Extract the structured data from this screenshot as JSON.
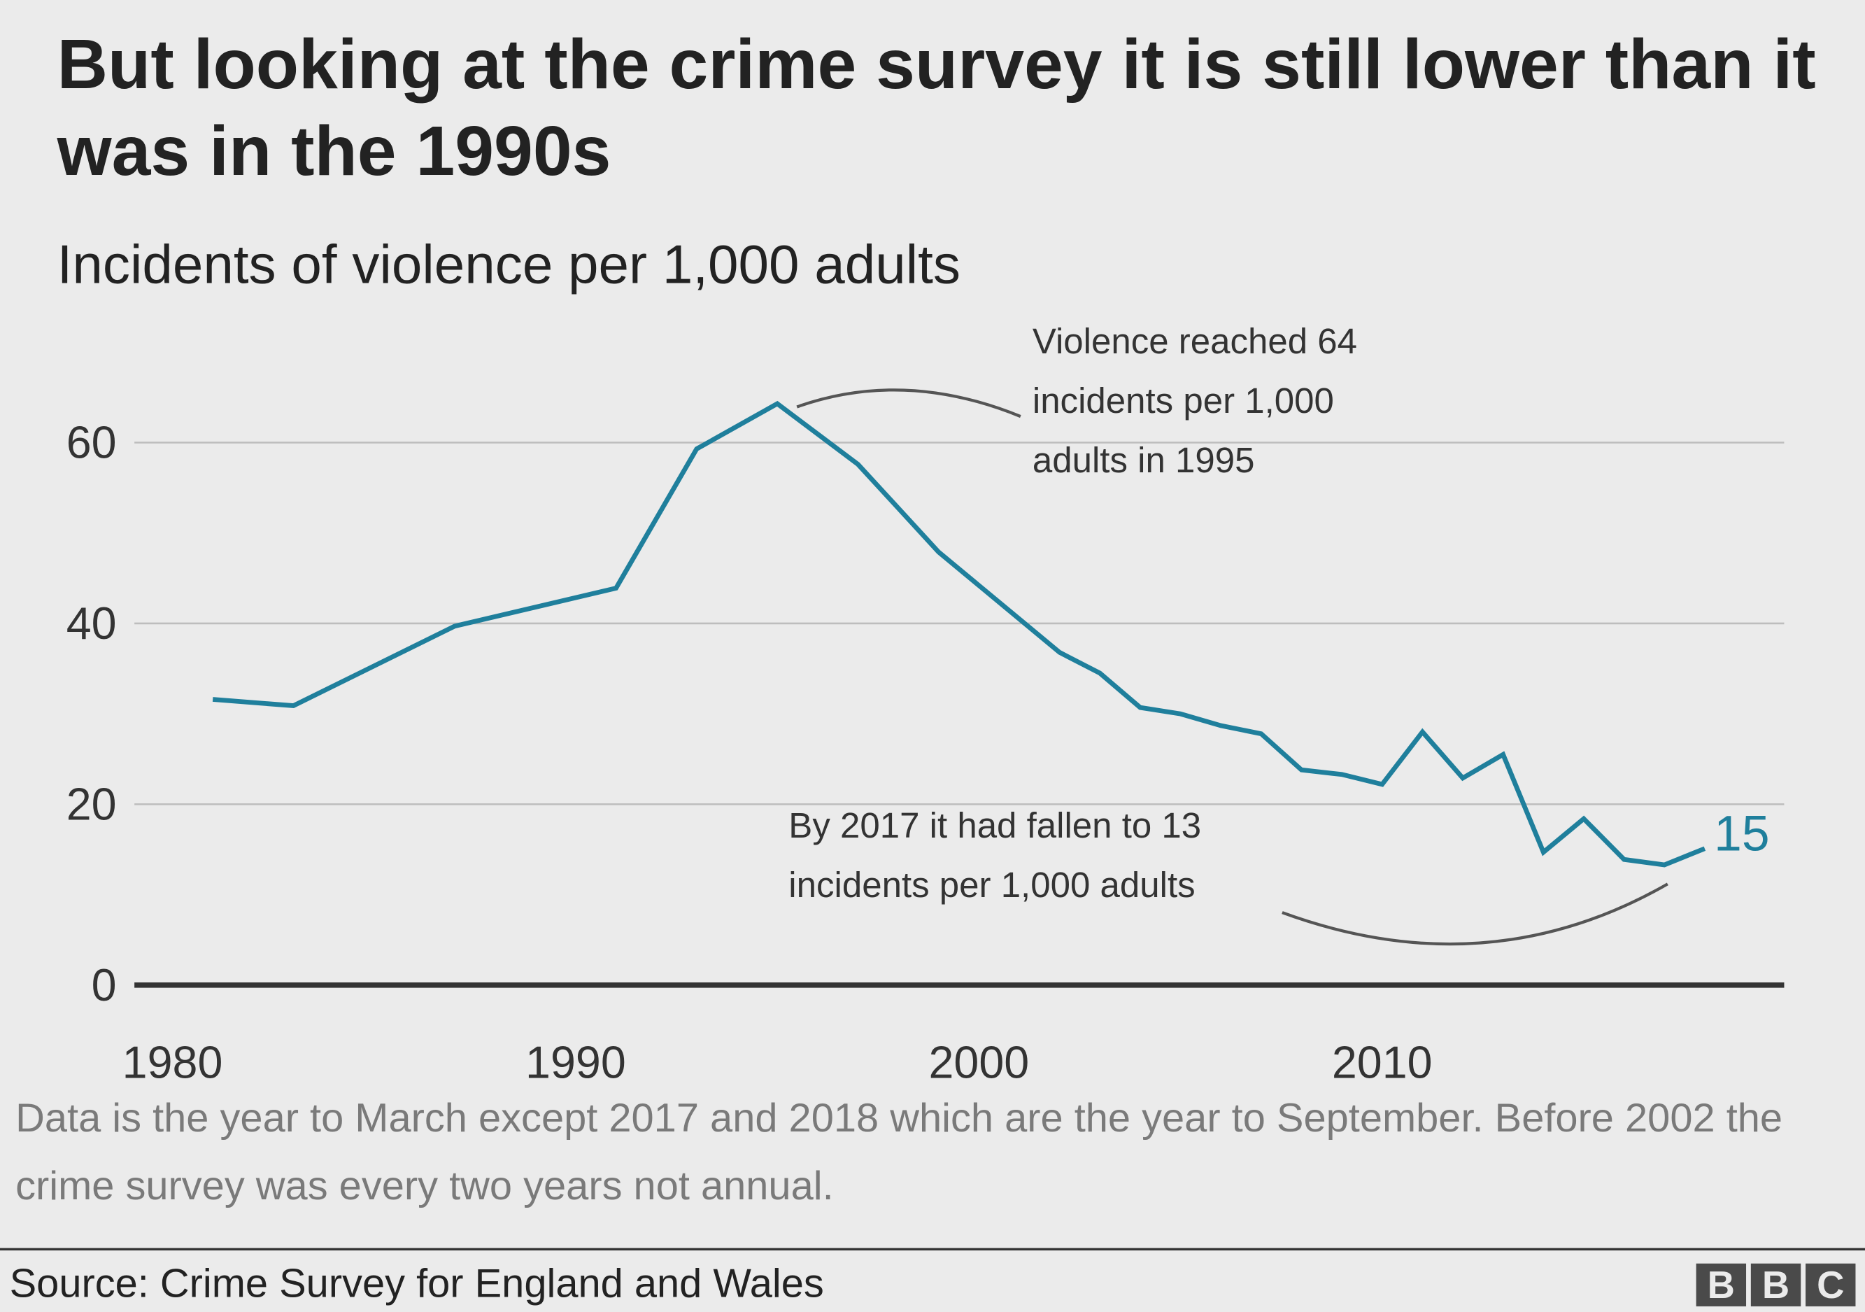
{
  "title": "But looking at the crime survey it is still lower than it was in the 1990s",
  "subtitle": "Incidents of violence per 1,000 adults",
  "annotations": {
    "peak": [
      "Violence reached 64",
      "incidents per 1,000",
      "adults in 1995"
    ],
    "recent": [
      "By 2017 it had fallen to 13",
      "incidents per 1,000 adults"
    ],
    "end_label": "15"
  },
  "note": "Data is the year to March except 2017 and 2018 which are the year to September. Before 2002 the crime survey was every two years not annual.",
  "source": "Source: Crime Survey for England and Wales",
  "logo": [
    "B",
    "B",
    "C"
  ],
  "colors": {
    "line": "#1f7f9c",
    "background": "#ebebeb",
    "grid": "#bdbdbd",
    "baseline": "#333333"
  },
  "chart_data": {
    "type": "line",
    "title": "Incidents of violence per 1,000 adults",
    "xlabel": "",
    "ylabel": "",
    "xlim": [
      1980,
      2018
    ],
    "ylim": [
      0,
      65
    ],
    "x_ticks": [
      "1980",
      "1990",
      "2000",
      "2010"
    ],
    "y_ticks": [
      "0",
      "20",
      "40",
      "60"
    ],
    "grid": "horizontal",
    "x": [
      1981,
      1983,
      1987,
      1991,
      1993,
      1995,
      1997,
      1999,
      2002,
      2003,
      2004,
      2005,
      2006,
      2007,
      2008,
      2009,
      2010,
      2011,
      2012,
      2013,
      2014,
      2015,
      2016,
      2017,
      2018
    ],
    "y": [
      31.6,
      30.9,
      39.7,
      43.9,
      59.3,
      64.3,
      57.6,
      47.9,
      36.8,
      34.5,
      30.7,
      30.0,
      28.7,
      27.8,
      23.8,
      23.3,
      22.2,
      28.0,
      22.9,
      25.5,
      14.7,
      18.4,
      13.9,
      13.3,
      15.1
    ]
  }
}
